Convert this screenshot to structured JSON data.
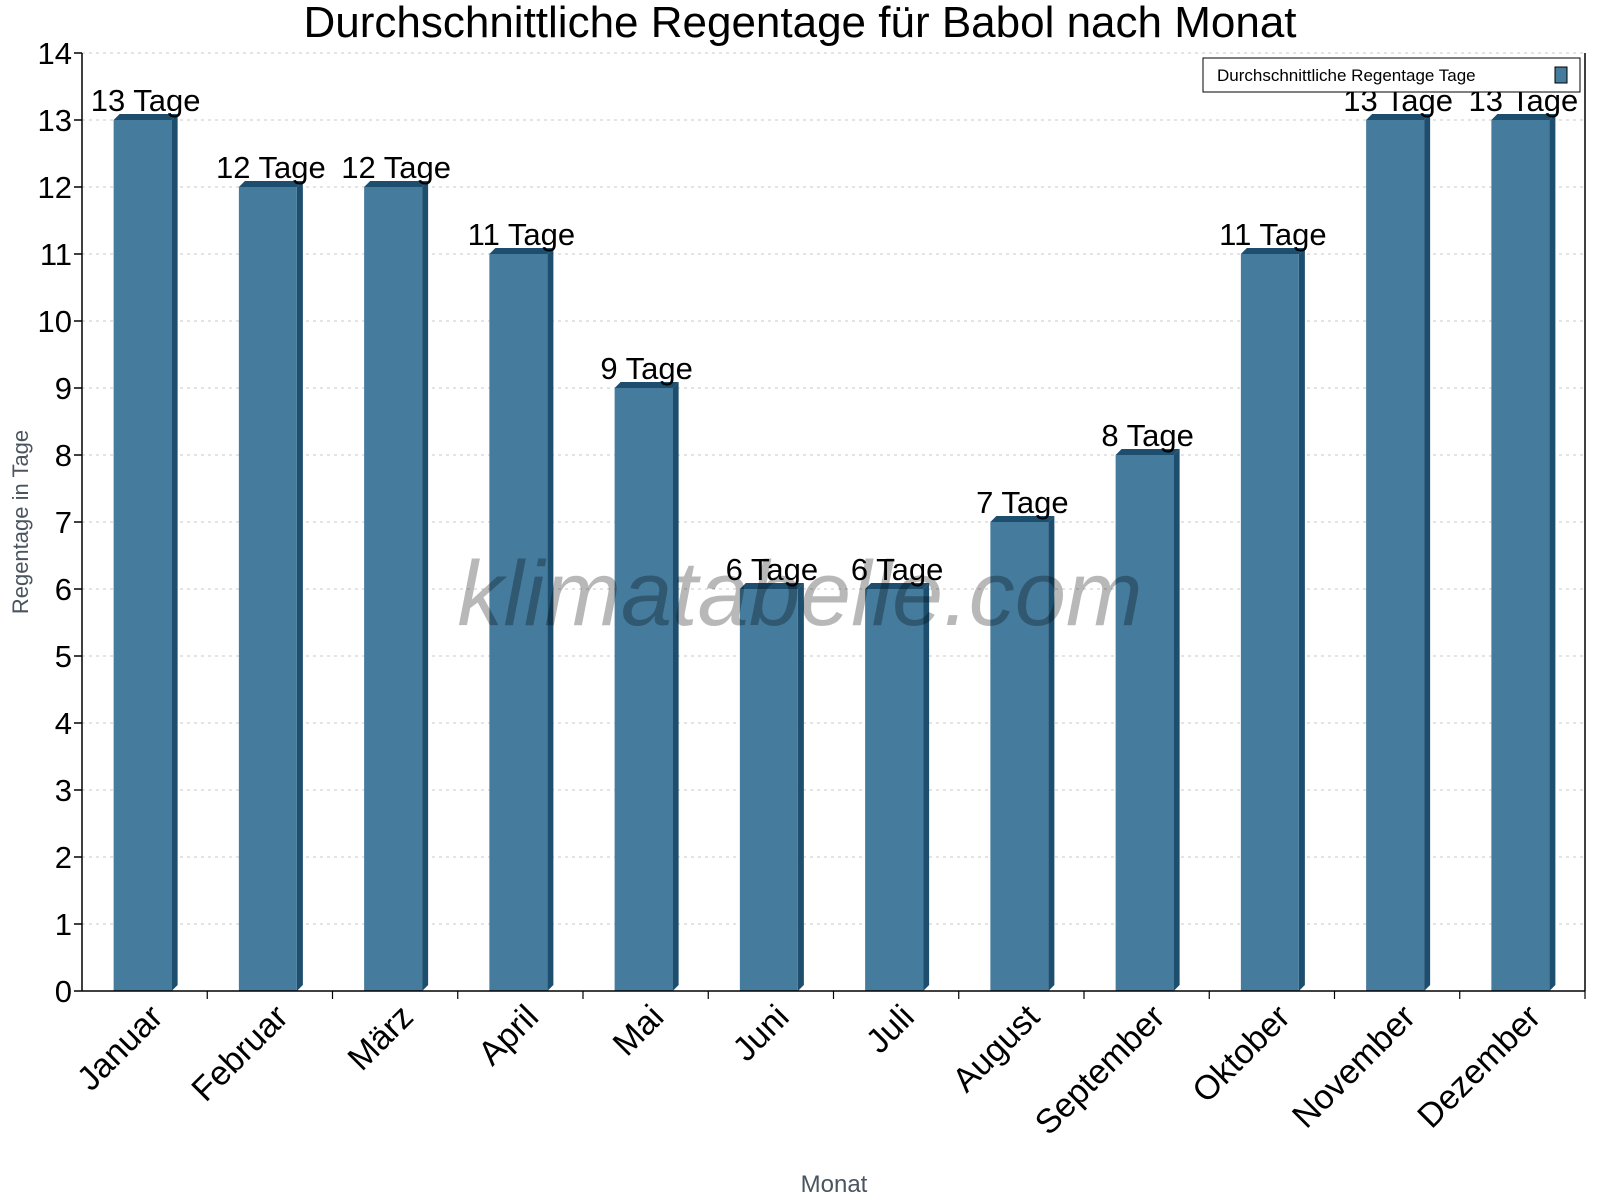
{
  "chart_data": {
    "type": "bar",
    "title": "Durchschnittliche Regentage für Babol nach Monat",
    "xlabel": "Monat",
    "ylabel": "Regentage in Tage",
    "categories": [
      "Januar",
      "Februar",
      "März",
      "April",
      "Mai",
      "Juni",
      "Juli",
      "August",
      "September",
      "Oktober",
      "November",
      "Dezember"
    ],
    "series": [
      {
        "name": "Durchschnittliche Regentage Tage",
        "values": [
          13,
          12,
          12,
          11,
          9,
          6,
          6,
          7,
          8,
          11,
          13,
          13
        ],
        "color": "#457b9d",
        "side_color": "#1d4e6e"
      }
    ],
    "data_labels": [
      "13 Tage",
      "12 Tage",
      "12 Tage",
      "11 Tage",
      "9 Tage",
      "6 Tage",
      "6 Tage",
      "7 Tage",
      "8 Tage",
      "11 Tage",
      "13 Tage",
      "13 Tage"
    ],
    "yticks": [
      "0",
      "1",
      "2",
      "3",
      "4",
      "5",
      "6",
      "7",
      "8",
      "9",
      "10",
      "11",
      "12",
      "13",
      "14"
    ],
    "ylim": [
      0,
      14
    ],
    "grid": true,
    "legend_position": "top-right",
    "watermark": "klimatabelle.com"
  }
}
